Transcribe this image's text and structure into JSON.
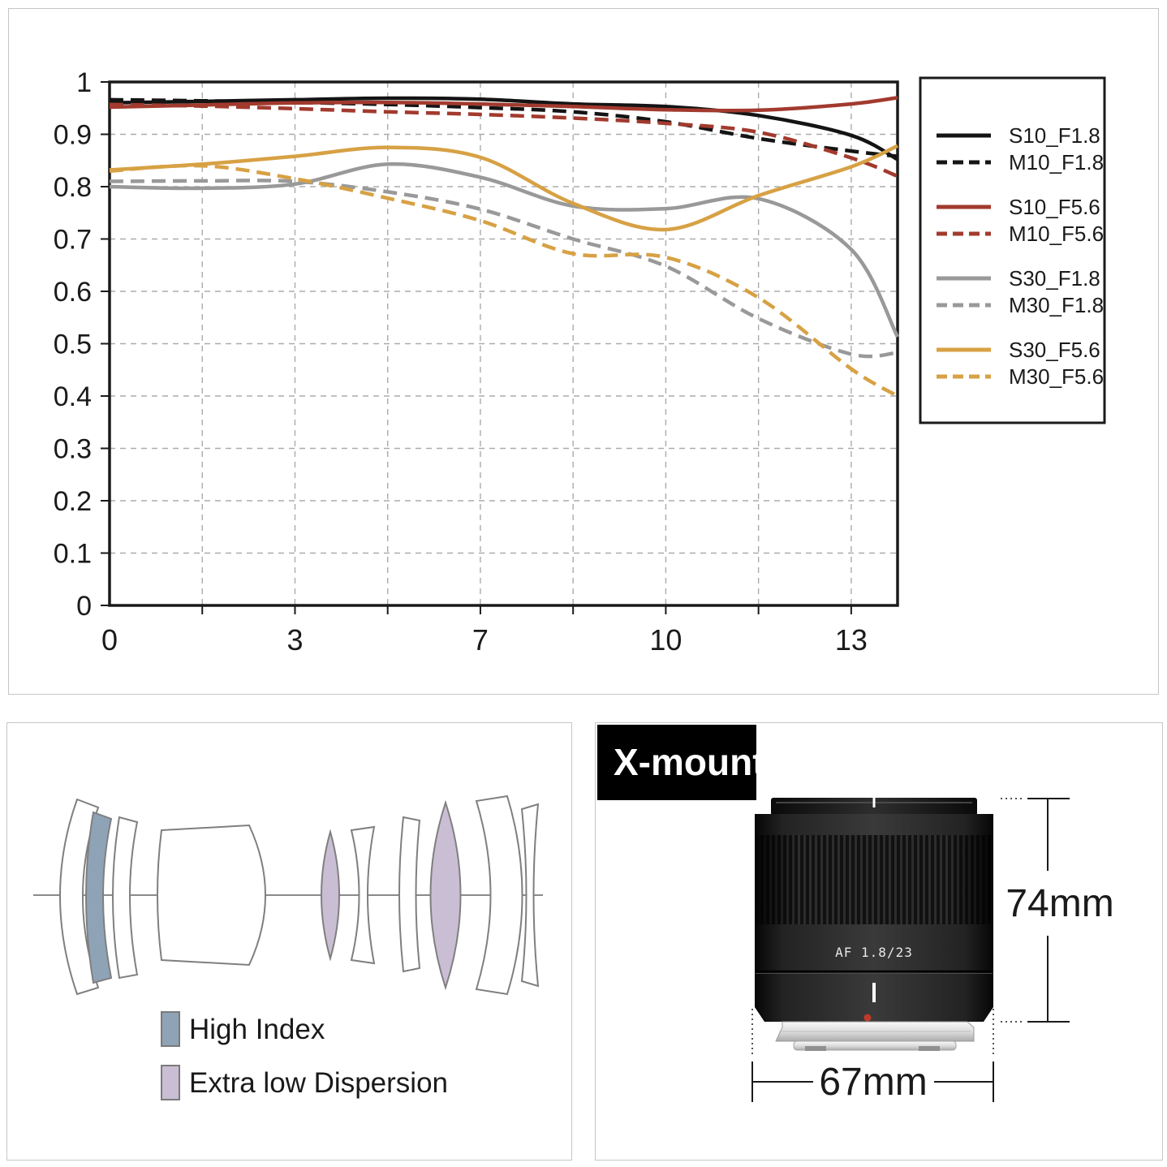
{
  "page": {
    "background": "#ffffff",
    "panel_border_color": "#c6c6c6"
  },
  "chart_panel": {
    "y_axis": {
      "tick_labels": [
        "1",
        "0.9",
        "0.8",
        "0.7",
        "0.6",
        "0.5",
        "0.4",
        "0.3",
        "0.2",
        "0.1",
        "0"
      ],
      "min": 0,
      "max": 1
    },
    "x_axis": {
      "tick_labels": [
        "0",
        "3",
        "7",
        "10",
        "13"
      ],
      "tick_positions": [
        0,
        2,
        4,
        6,
        8
      ],
      "grid_positions": [
        1,
        2,
        3,
        4,
        5,
        6,
        7,
        8
      ],
      "max_units": 8.5
    },
    "chart_data": {
      "type": "line",
      "title": "",
      "xlabel": "",
      "ylabel": "",
      "ylim": [
        0,
        1
      ],
      "grid": true,
      "legend_position": "right",
      "x_note": "x in evenly spaced gridline units; axis labels 0,3,7,10,13 sit at units 0,2,4,6,8; plot extends to 8.5",
      "x": [
        0,
        1,
        2,
        3,
        4,
        5,
        6,
        7,
        8,
        8.5
      ],
      "series": [
        {
          "name": "S10_F1.8",
          "color": "#141414",
          "style": "solid",
          "values": [
            0.96,
            0.963,
            0.966,
            0.969,
            0.967,
            0.958,
            0.953,
            0.936,
            0.898,
            0.852
          ]
        },
        {
          "name": "M10_F1.8",
          "color": "#141414",
          "style": "dashed",
          "values": [
            0.966,
            0.964,
            0.961,
            0.957,
            0.951,
            0.943,
            0.924,
            0.892,
            0.868,
            0.858
          ]
        },
        {
          "name": "S10_F5.6",
          "color": "#a23a2e",
          "style": "solid",
          "values": [
            0.952,
            0.956,
            0.96,
            0.961,
            0.958,
            0.953,
            0.947,
            0.946,
            0.958,
            0.97
          ]
        },
        {
          "name": "M10_F5.6",
          "color": "#a23a2e",
          "style": "dashed",
          "values": [
            0.957,
            0.954,
            0.949,
            0.943,
            0.938,
            0.931,
            0.921,
            0.904,
            0.855,
            0.82
          ]
        },
        {
          "name": "S30_F1.8",
          "color": "#999999",
          "style": "solid",
          "values": [
            0.8,
            0.797,
            0.805,
            0.843,
            0.818,
            0.763,
            0.758,
            0.777,
            0.68,
            0.513
          ]
        },
        {
          "name": "M30_F1.8",
          "color": "#999999",
          "style": "dashed",
          "values": [
            0.81,
            0.811,
            0.81,
            0.79,
            0.757,
            0.7,
            0.648,
            0.548,
            0.48,
            0.483
          ]
        },
        {
          "name": "S30_F5.6",
          "color": "#d7a144",
          "style": "solid",
          "values": [
            0.832,
            0.843,
            0.858,
            0.875,
            0.856,
            0.768,
            0.718,
            0.783,
            0.838,
            0.878
          ]
        },
        {
          "name": "M30_F5.6",
          "color": "#d7a144",
          "style": "dashed",
          "values": [
            0.83,
            0.84,
            0.815,
            0.778,
            0.735,
            0.672,
            0.665,
            0.588,
            0.452,
            0.4
          ]
        }
      ]
    }
  },
  "diagram_panel": {
    "outline_color": "#7f7f7f",
    "axis_color": "#8a8a8a",
    "legend_items": [
      {
        "label": "High Index",
        "color": "#8fa3b7"
      },
      {
        "label": "Extra low Dispersion",
        "color": "#c9bed3"
      }
    ]
  },
  "mount_panel": {
    "badge_label": "X-mount",
    "lens_engraving": "AF 1.8/23",
    "dimensions": {
      "height": "74mm",
      "width": "67mm"
    },
    "accent_red": "#c0392b",
    "dimension_line_color": "#1a1a1a"
  }
}
